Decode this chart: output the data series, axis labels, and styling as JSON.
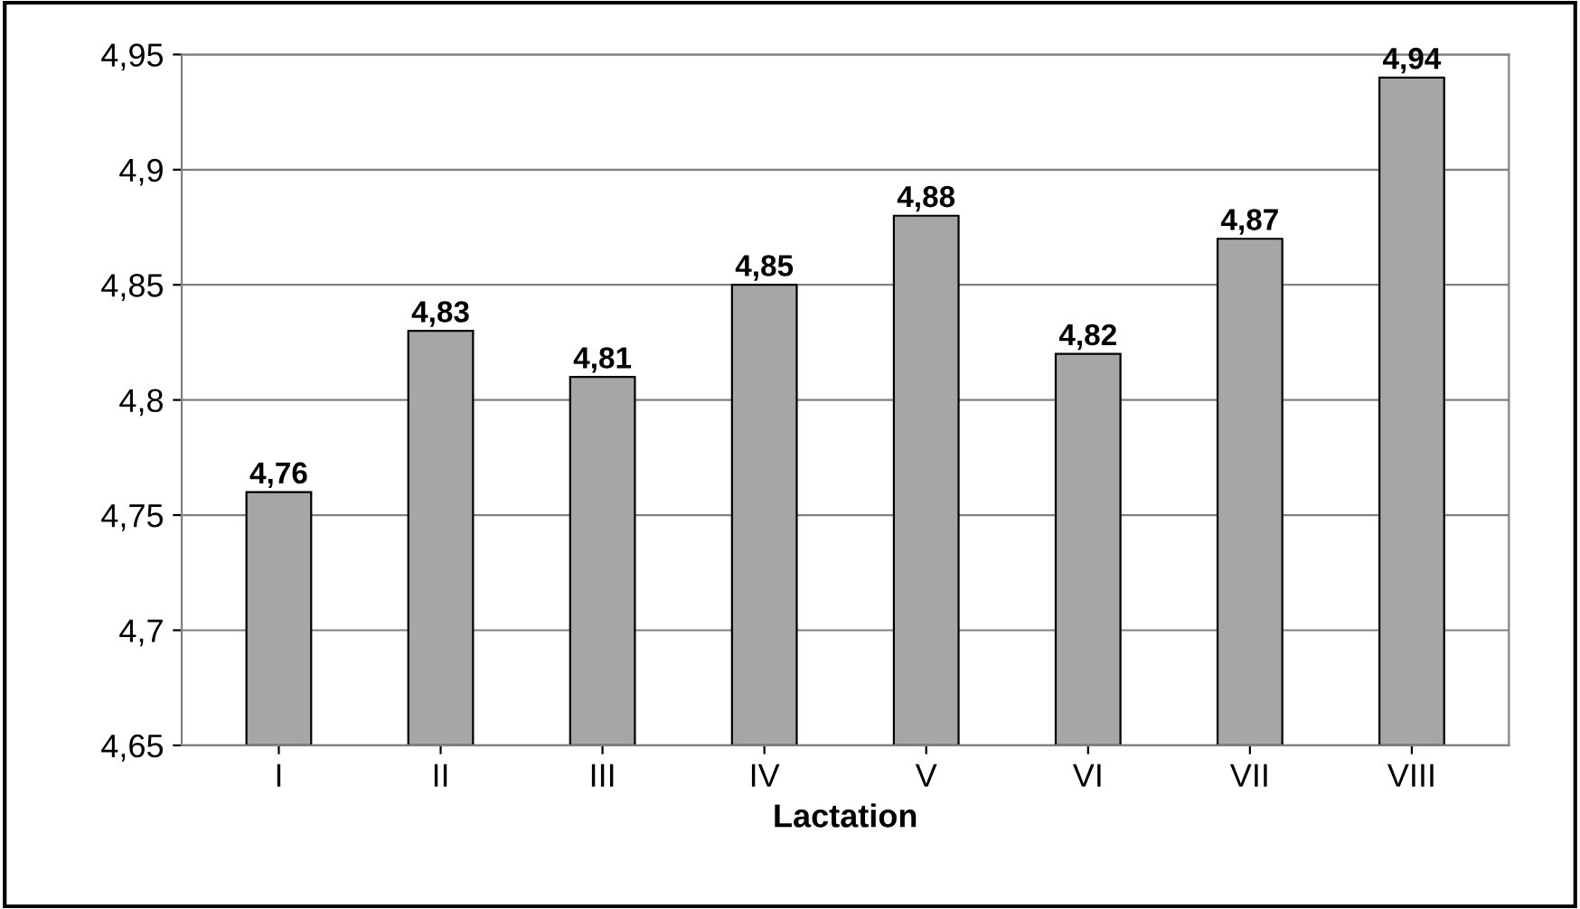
{
  "chart_data": {
    "type": "bar",
    "xlabel": "Lactation",
    "categories": [
      "I",
      "II",
      "III",
      "IV",
      "V",
      "VI",
      "VII",
      "VIII"
    ],
    "values": [
      4.76,
      4.83,
      4.81,
      4.85,
      4.88,
      4.82,
      4.87,
      4.94
    ],
    "value_labels": [
      "4,76",
      "4,83",
      "4,81",
      "4,85",
      "4,88",
      "4,82",
      "4,87",
      "4,94"
    ],
    "color": "#a6a6a6",
    "ylim": [
      4.65,
      4.95
    ],
    "yticks": [
      {
        "value": 4.65,
        "label": "4,65"
      },
      {
        "value": 4.7,
        "label": "4,7"
      },
      {
        "value": 4.75,
        "label": "4,75"
      },
      {
        "value": 4.8,
        "label": "4,8"
      },
      {
        "value": 4.85,
        "label": "4,85"
      },
      {
        "value": 4.9,
        "label": "4,9"
      },
      {
        "value": 4.95,
        "label": "4,95"
      }
    ],
    "grid": "y"
  }
}
